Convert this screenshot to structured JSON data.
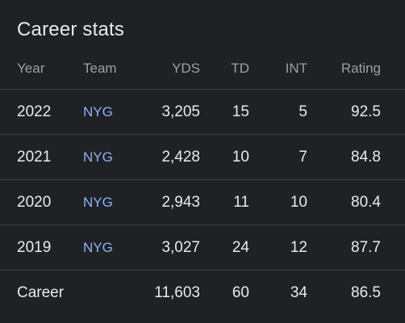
{
  "card": {
    "title": "Career stats"
  },
  "columns": {
    "year": "Year",
    "team": "Team",
    "yds": "YDS",
    "td": "TD",
    "int": "INT",
    "rating": "Rating"
  },
  "rows": [
    {
      "year": "2022",
      "team": "NYG",
      "yds": "3,205",
      "td": "15",
      "int": "5",
      "rating": "92.5"
    },
    {
      "year": "2021",
      "team": "NYG",
      "yds": "2,428",
      "td": "10",
      "int": "7",
      "rating": "84.8"
    },
    {
      "year": "2020",
      "team": "NYG",
      "yds": "2,943",
      "td": "11",
      "int": "10",
      "rating": "80.4"
    },
    {
      "year": "2019",
      "team": "NYG",
      "yds": "3,027",
      "td": "24",
      "int": "12",
      "rating": "87.7"
    }
  ],
  "career": {
    "label": "Career",
    "yds": "11,603",
    "td": "60",
    "int": "34",
    "rating": "86.5"
  },
  "colors": {
    "background": "#202124",
    "text": "#e8eaed",
    "muted": "#9aa0a6",
    "link": "#8ab4f8",
    "divider": "#3c4043"
  }
}
